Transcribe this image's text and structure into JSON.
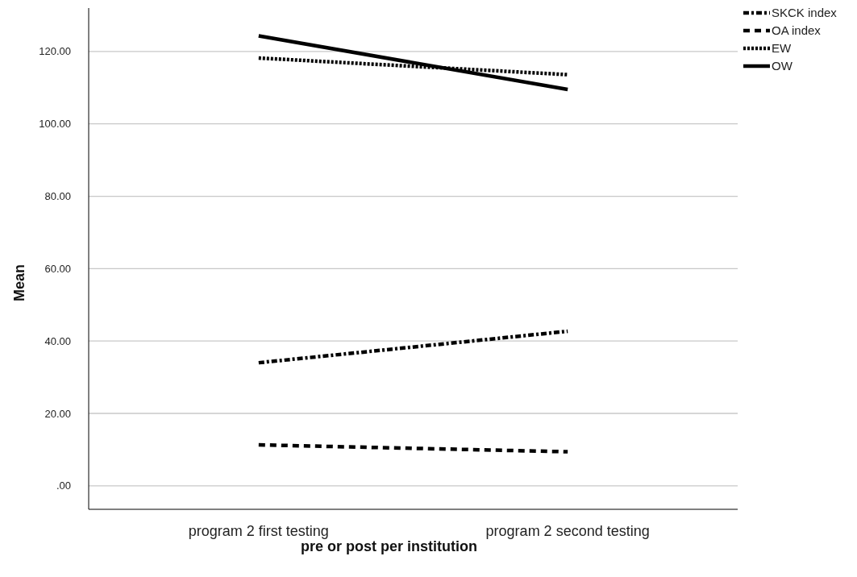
{
  "chart_data": {
    "type": "line",
    "xlabel": "pre or post per institution",
    "ylabel": "Mean",
    "categories": [
      "program 2 first testing",
      "program 2 second testing"
    ],
    "series": [
      {
        "name": "SKCK index",
        "color": "#000000",
        "line_style": "dashdot",
        "values": [
          34.0,
          42.7
        ]
      },
      {
        "name": "OA index",
        "color": "#000000",
        "line_style": "dashed",
        "values": [
          11.3,
          9.4
        ]
      },
      {
        "name": "EW",
        "color": "#000000",
        "line_style": "dotted",
        "values": [
          118.2,
          113.6
        ]
      },
      {
        "name": "OW",
        "color": "#000000",
        "line_style": "solid",
        "values": [
          124.3,
          109.5
        ]
      }
    ],
    "ylim": [
      -6.5,
      132
    ],
    "yticks": [
      {
        "value": 0,
        "label": ".00"
      },
      {
        "value": 20,
        "label": "20.00"
      },
      {
        "value": 40,
        "label": "40.00"
      },
      {
        "value": 60,
        "label": "60.00"
      },
      {
        "value": 80,
        "label": "80.00"
      },
      {
        "value": 100,
        "label": "100.00"
      },
      {
        "value": 120,
        "label": "120.00"
      }
    ],
    "grid": "y",
    "legend": "top right",
    "marker": "none"
  }
}
